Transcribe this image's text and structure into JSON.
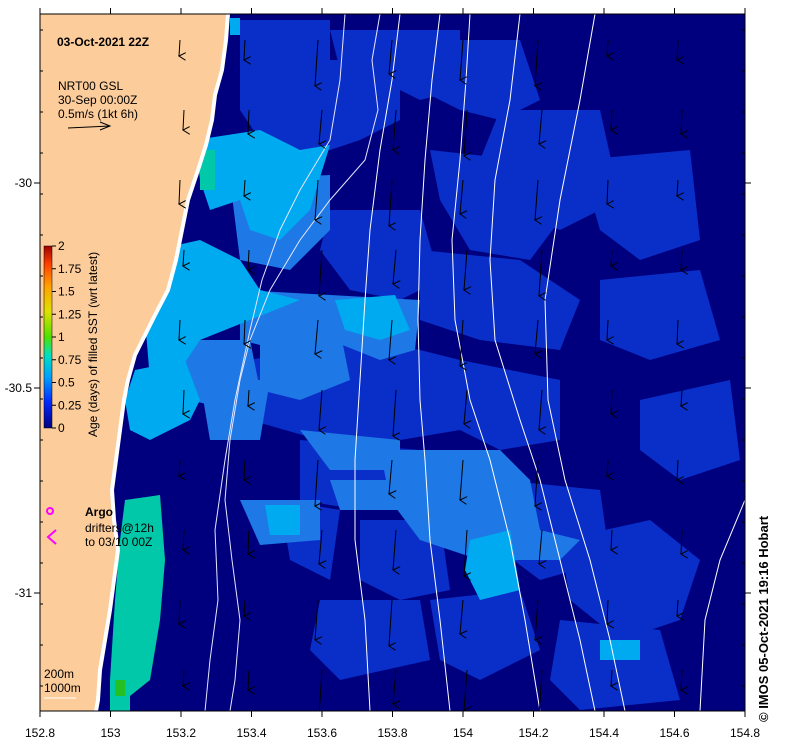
{
  "header": {
    "date_label": "03-Oct-2021 22Z",
    "product": "NRT00 GSL",
    "product_time": "30-Sep 00:00Z",
    "vector_scale": "0.5m/s (1kt 6h)"
  },
  "colorbar": {
    "title": "Age (days) of filled SST (wrt latest)",
    "ticks": [
      "0",
      "0.25",
      "0.5",
      "0.75",
      "1",
      "1.25",
      "1.5",
      "1.75",
      "2"
    ],
    "colors": [
      "#000080",
      "#0040ff",
      "#00aaff",
      "#00e0c0",
      "#60e000",
      "#e0e000",
      "#ffa000",
      "#ff5000",
      "#a00000"
    ]
  },
  "legend": {
    "argo_label": "Argo",
    "drifters_line1": "drifters@12h",
    "drifters_line2": "to 03/10 00Z",
    "marker_color": "#ff00ff"
  },
  "depth_legend": {
    "contour_1": "200m",
    "contour_2": "1000m"
  },
  "axes": {
    "x_ticks": [
      "152.8",
      "153",
      "153.2",
      "153.4",
      "153.6",
      "153.8",
      "154",
      "154.2",
      "154.4",
      "154.6",
      "154.8"
    ],
    "y_ticks": [
      "-30",
      "-30.5",
      "-31"
    ]
  },
  "footer": {
    "copyright": "© IMOS 05-Oct-2021 19:16 Hobart"
  },
  "map_colors": {
    "land": "#fccc9b",
    "age_0": "#00007f",
    "age_0_25": "#0a2fc8",
    "age_0_4": "#1e78e6",
    "age_0_5": "#00aaf0",
    "age_0_75": "#00c8a8",
    "age_1": "#24c024"
  }
}
